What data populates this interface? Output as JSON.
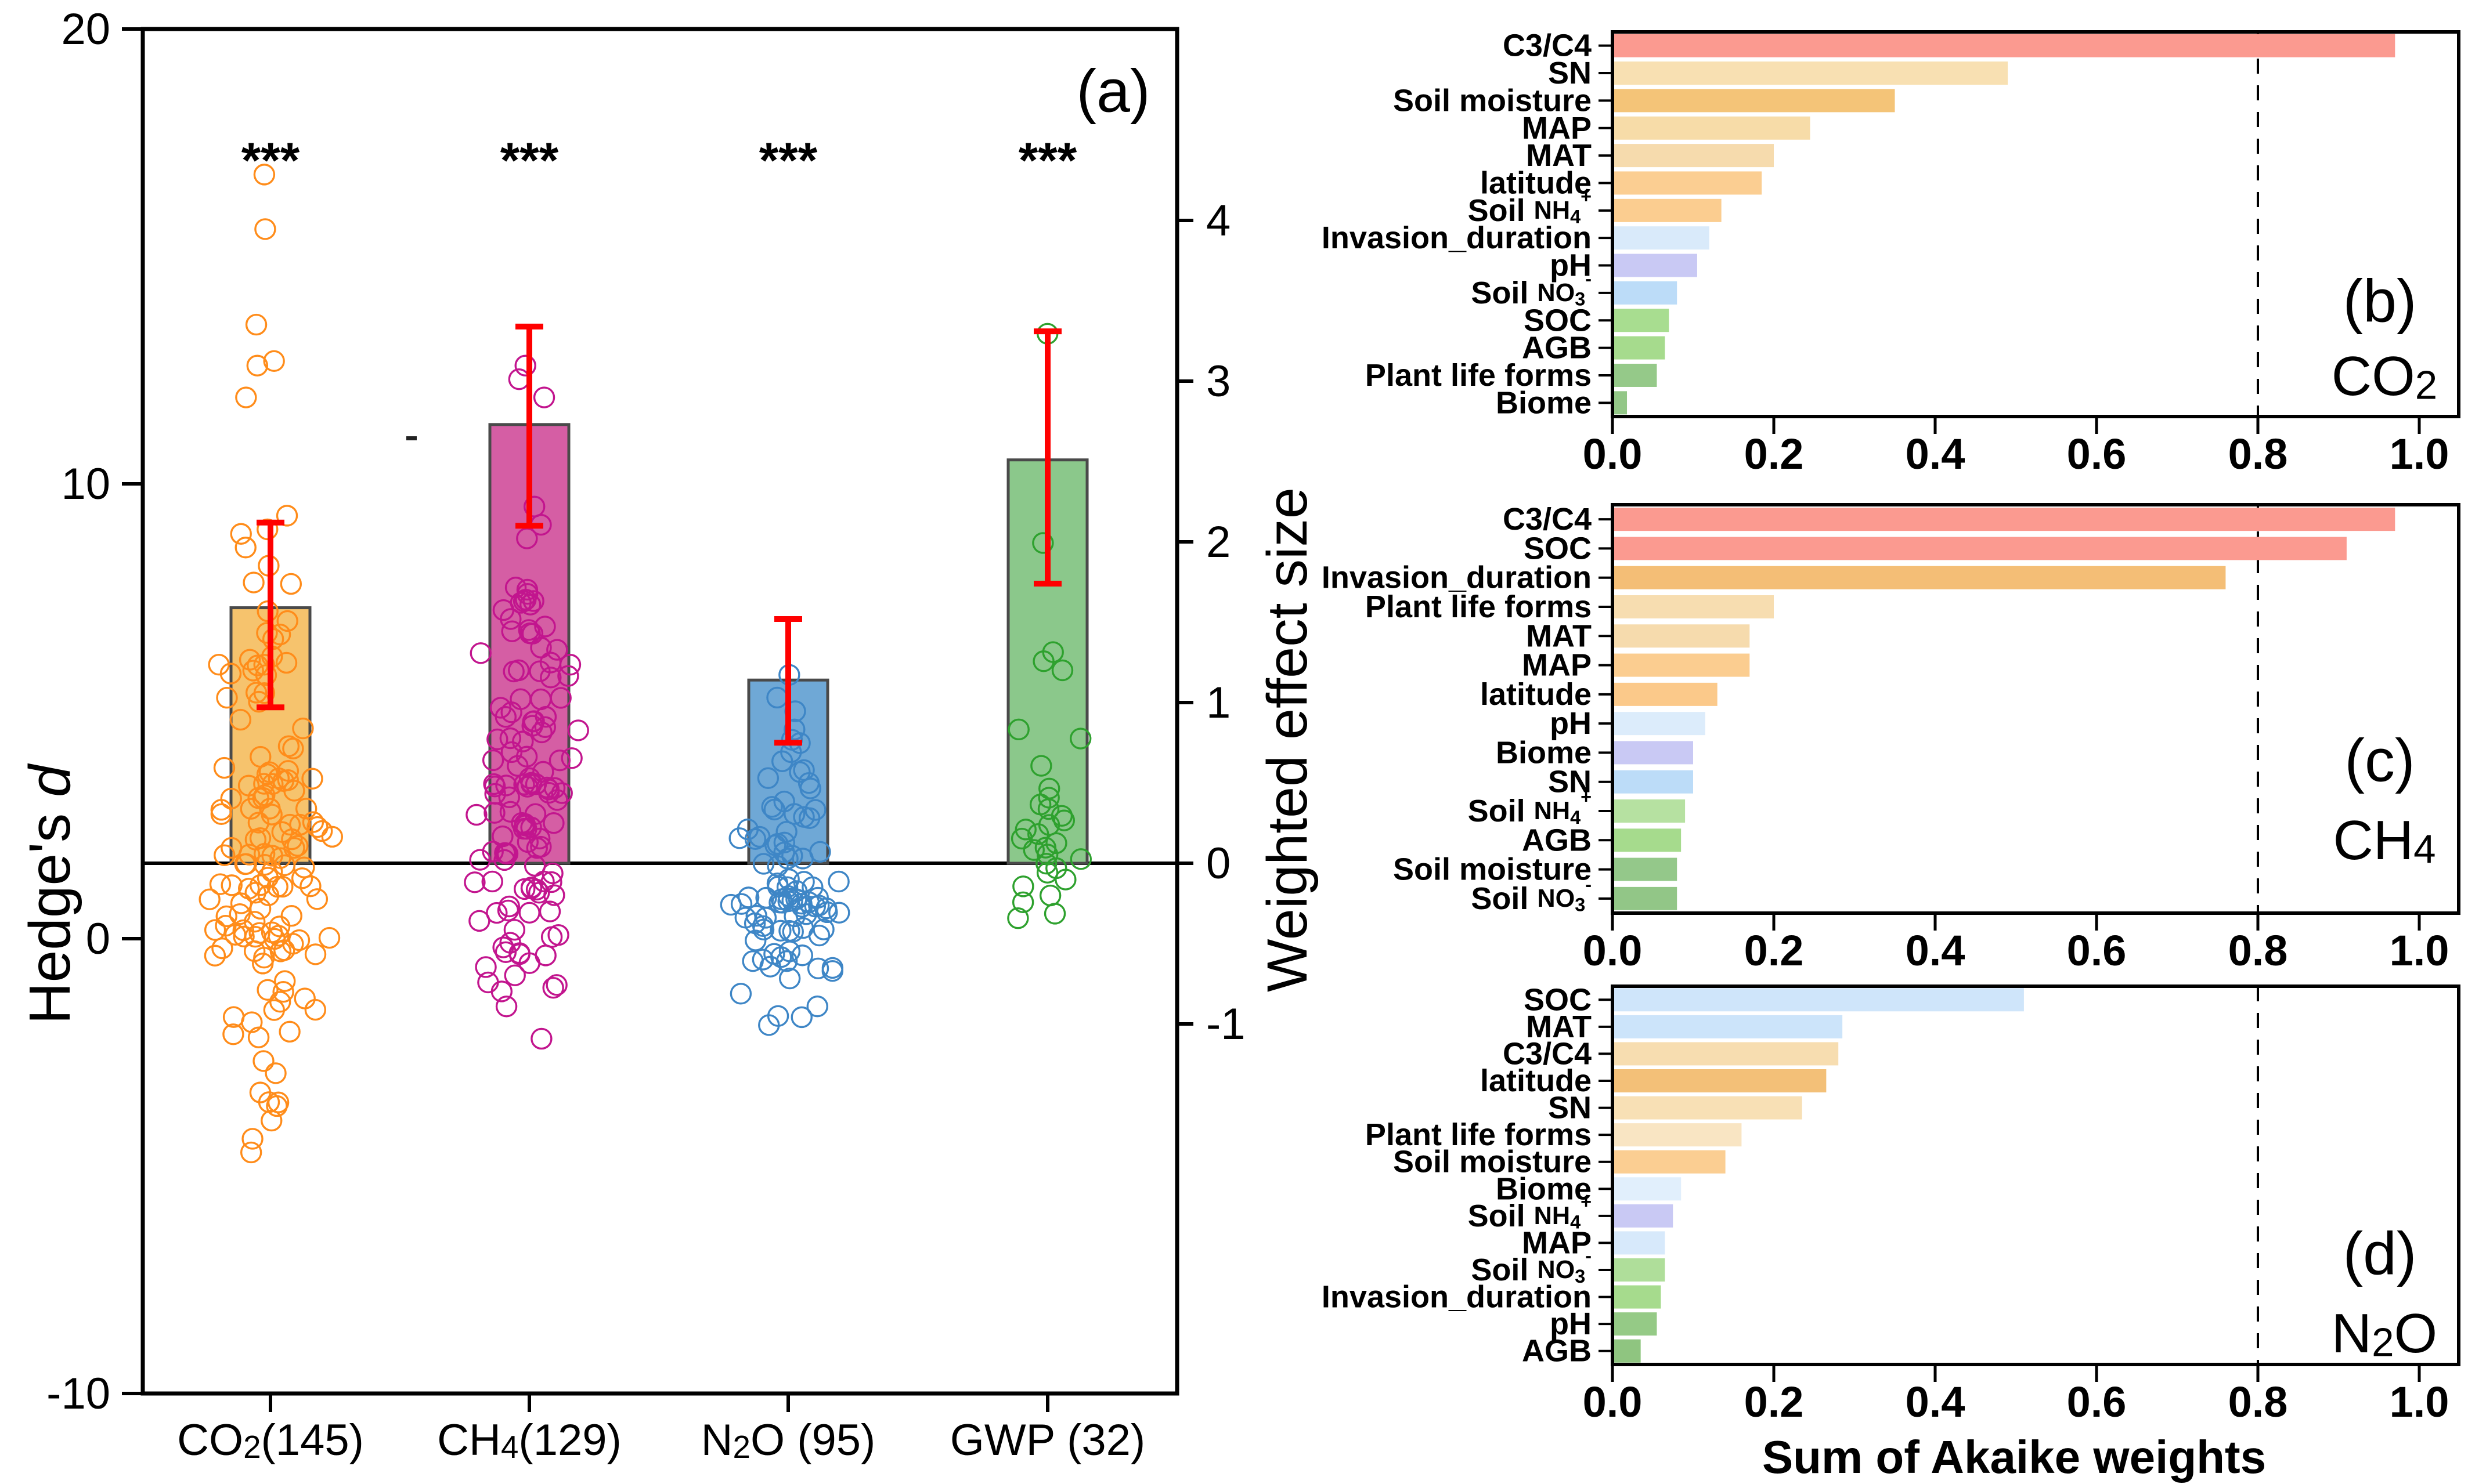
{
  "figure_title": "",
  "chart_data": [
    {
      "id": "a",
      "type": "bar",
      "subtype": "bar_with_jittered_scatter_dual_axis",
      "panel_label": "(a)",
      "ylabel_left": "Hedge's d",
      "ylabel_right": "Weighted effect size",
      "yaxis_left": {
        "ticks": [
          20,
          10,
          0,
          -10
        ],
        "range": [
          -10,
          20
        ]
      },
      "yaxis_right": {
        "ticks": [
          4,
          3,
          2,
          1,
          0,
          -1
        ],
        "range": [
          -3.3,
          5.2
        ]
      },
      "baseline_weighted_effect_size": 0,
      "error_bar_color": "#FF0000",
      "bar_border_color": "#4a4a4a",
      "groups": [
        {
          "label": "CO2(145)",
          "n": 145,
          "significance": "***",
          "weighted_effect_size": 1.59,
          "ci": [
            0.97,
            2.12
          ],
          "mean_hedges_d": 7.3,
          "bar_color": "#F6C36D",
          "marker_color": "#FF8C1A",
          "scatter": {
            "clusters": [
              {
                "center": 0.6,
                "spread": 0.75,
                "n": 30,
                "jitter": 120
              },
              {
                "center": 1.9,
                "spread": 0.8,
                "n": 30,
                "jitter": 118
              },
              {
                "center": 3.2,
                "spread": 1.0,
                "n": 22,
                "jitter": 108
              },
              {
                "center": 4.8,
                "spread": 1.0,
                "n": 16,
                "jitter": 96
              },
              {
                "center": 6.3,
                "spread": 0.7,
                "n": 8,
                "jitter": 82
              },
              {
                "center": -1.0,
                "spread": 0.7,
                "n": 14,
                "jitter": 112
              },
              {
                "center": -2.6,
                "spread": 0.8,
                "n": 9,
                "jitter": 96
              }
            ],
            "extras": [
              16.8,
              15.6,
              13.5,
              12.7,
              12.6,
              11.9,
              9.3,
              9.0,
              8.9,
              8.6,
              8.2,
              7.8,
              -3.6,
              -4.0,
              -4.4,
              -4.7
            ]
          }
        },
        {
          "label": "CH4(129)",
          "n": 129,
          "significance": "***",
          "weighted_effect_size": 2.73,
          "ci": [
            2.1,
            3.34
          ],
          "mean_hedges_d": 11.3,
          "bar_color": "#D55EA4",
          "marker_color": "#C2158E",
          "scatter": {
            "clusters": [
              {
                "center": 1.2,
                "spread": 0.7,
                "n": 30,
                "jitter": 112
              },
              {
                "center": 2.6,
                "spread": 0.9,
                "n": 30,
                "jitter": 106
              },
              {
                "center": 4.2,
                "spread": 1.0,
                "n": 24,
                "jitter": 98
              },
              {
                "center": 5.8,
                "spread": 0.9,
                "n": 16,
                "jitter": 88
              },
              {
                "center": 7.3,
                "spread": 0.6,
                "n": 10,
                "jitter": 76
              },
              {
                "center": -0.9,
                "spread": 0.55,
                "n": 12,
                "jitter": 98
              }
            ],
            "extras": [
              12.6,
              12.3,
              11.9,
              9.5,
              9.1,
              8.8,
              -2.2
            ]
          }
        },
        {
          "label": "N2O (95)",
          "n": 95,
          "significance": "***",
          "weighted_effect_size": 1.14,
          "ci": [
            0.75,
            1.52
          ],
          "mean_hedges_d": 5.7,
          "bar_color": "#6FA8D6",
          "marker_color": "#3E86C6",
          "scatter": {
            "clusters": [
              {
                "center": 0.5,
                "spread": 0.55,
                "n": 34,
                "jitter": 106
              },
              {
                "center": 1.6,
                "spread": 0.7,
                "n": 24,
                "jitter": 96
              },
              {
                "center": 2.8,
                "spread": 0.8,
                "n": 16,
                "jitter": 86
              },
              {
                "center": -0.9,
                "spread": 0.5,
                "n": 12,
                "jitter": 92
              }
            ],
            "extras": [
              5.8,
              5.3,
              5.0,
              4.6,
              4.3,
              4.1,
              3.9,
              -1.9,
              -1.7
            ]
          }
        },
        {
          "label": "GWP (32)",
          "n": 32,
          "significance": "***",
          "weighted_effect_size": 2.51,
          "ci": [
            1.74,
            3.31
          ],
          "mean_hedges_d": 10.5,
          "bar_color": "#8BC88B",
          "marker_color": "#2EA12E",
          "scatter": {
            "points": [
              13.3,
              8.7,
              6.3,
              6.1,
              5.9,
              4.6,
              4.4,
              3.8,
              3.3,
              3.1,
              2.95,
              2.85,
              2.7,
              2.6,
              2.5,
              2.4,
              2.3,
              2.2,
              2.1,
              2.0,
              1.95,
              1.85,
              1.75,
              1.65,
              1.55,
              1.45,
              1.3,
              1.15,
              0.95,
              0.8,
              0.55,
              0.45
            ],
            "jitter": 70
          }
        }
      ],
      "artifacts": [
        {
          "type": "stray-dash",
          "x": 700,
          "y": 752
        }
      ]
    },
    {
      "id": "b",
      "type": "bar",
      "orientation": "horizontal",
      "panel_label": "(b)",
      "gas": "CO2",
      "xlabel": "",
      "xticks": [
        "0.0",
        "0.2",
        "0.4",
        "0.6",
        "0.8",
        "1.0"
      ],
      "xlim": [
        0,
        1.05
      ],
      "dashed_reference_x": 0.8,
      "categories": [
        "C3/C4",
        "SN",
        "Soil moisture",
        "MAP",
        "MAT",
        "latitude",
        "Soil NH4+",
        "Invasion_duration",
        "pH",
        "Soil NO3-",
        "SOC",
        "AGB",
        "Plant life forms",
        "Biome"
      ],
      "values": [
        0.97,
        0.49,
        0.35,
        0.245,
        0.2,
        0.185,
        0.135,
        0.12,
        0.105,
        0.08,
        0.07,
        0.065,
        0.055,
        0.018
      ],
      "bar_colors": [
        "#FB9A90",
        "#F8E0B2",
        "#F4C478",
        "#F7DCA8",
        "#F6DBAD",
        "#FBCE92",
        "#FBCD90",
        "#D9EAFA",
        "#C9C9F4",
        "#BCDCF8",
        "#A8DD90",
        "#A6DB8D",
        "#95C989",
        "#93C787"
      ]
    },
    {
      "id": "c",
      "type": "bar",
      "orientation": "horizontal",
      "panel_label": "(c)",
      "gas": "CH4",
      "xlabel": "",
      "xticks": [
        "0.0",
        "0.2",
        "0.4",
        "0.6",
        "0.8",
        "1.0"
      ],
      "xlim": [
        0,
        1.05
      ],
      "dashed_reference_x": 0.8,
      "categories": [
        "C3/C4",
        "SOC",
        "Invasion_duration",
        "Plant life forms",
        "MAT",
        "MAP",
        "latitude",
        "pH",
        "Biome",
        "SN",
        "Soil NH4+",
        "AGB",
        "Soil moisture",
        "Soil NO3-"
      ],
      "values": [
        0.97,
        0.91,
        0.76,
        0.2,
        0.17,
        0.17,
        0.13,
        0.115,
        0.1,
        0.1,
        0.09,
        0.085,
        0.08,
        0.08
      ],
      "bar_colors": [
        "#FB9A90",
        "#FB9A90",
        "#F4BE76",
        "#F7DDB0",
        "#F6DBAD",
        "#FBCD90",
        "#FBC98A",
        "#DCECFB",
        "#C9C9F4",
        "#BCDCF8",
        "#B6E1A1",
        "#A6DB8D",
        "#94C88A",
        "#92C687"
      ]
    },
    {
      "id": "d",
      "type": "bar",
      "orientation": "horizontal",
      "panel_label": "(d)",
      "gas": "N2O",
      "xlabel": "Sum of Akaike weights",
      "xticks": [
        "0.0",
        "0.2",
        "0.4",
        "0.6",
        "0.8",
        "1.0"
      ],
      "xlim": [
        0,
        1.05
      ],
      "dashed_reference_x": 0.8,
      "categories": [
        "SOC",
        "MAT",
        "C3/C4",
        "latitude",
        "SN",
        "Plant life forms",
        "Soil moisture",
        "Biome",
        "Soil NH4+",
        "MAP",
        "Soil NO3-",
        "Invasion_duration",
        "pH",
        "AGB"
      ],
      "values": [
        0.51,
        0.285,
        0.28,
        0.265,
        0.235,
        0.16,
        0.14,
        0.085,
        0.075,
        0.065,
        0.065,
        0.06,
        0.055,
        0.035
      ],
      "bar_colors": [
        "#CFE5FA",
        "#CCE4FA",
        "#F7DDB0",
        "#F3C078",
        "#F8E0B5",
        "#F9E5C3",
        "#FBCE92",
        "#E1EFFC",
        "#C9C9F4",
        "#D7E9FB",
        "#AFDE9A",
        "#A6DB8D",
        "#95CA86",
        "#8FC580"
      ]
    }
  ],
  "rich_labels": {
    "CO2(145)": [
      {
        "t": "CO"
      },
      {
        "t": "2",
        "s": 0.72,
        "o": 0.16
      },
      {
        "t": "(145)"
      }
    ],
    "CH4(129)": [
      {
        "t": "CH"
      },
      {
        "t": "4",
        "s": 0.72,
        "o": 0.16
      },
      {
        "t": "(129)"
      }
    ],
    "N2O (95)": [
      {
        "t": "N"
      },
      {
        "t": "2",
        "s": 0.72,
        "o": 0.16
      },
      {
        "t": "O (95)"
      }
    ],
    "GWP (32)": [
      {
        "t": "GWP (32)"
      }
    ],
    "Soil NH4+": [
      {
        "t": "Soil "
      },
      {
        "t": "NH",
        "s": 0.8
      },
      {
        "t": "4",
        "s": 0.6,
        "o": 0.2
      },
      {
        "t": "+",
        "s": 0.6,
        "o": -0.45
      }
    ],
    "Soil NO3-": [
      {
        "t": "Soil "
      },
      {
        "t": "NO",
        "s": 0.8
      },
      {
        "t": "3",
        "s": 0.6,
        "o": 0.2
      },
      {
        "t": "-",
        "s": 0.6,
        "o": -0.45
      }
    ],
    "CO2": [
      {
        "t": "CO"
      },
      {
        "t": "2",
        "s": 0.72,
        "o": 0.16
      }
    ],
    "CH4": [
      {
        "t": "CH"
      },
      {
        "t": "4",
        "s": 0.72,
        "o": 0.16
      }
    ],
    "N2O": [
      {
        "t": "N"
      },
      {
        "t": "2",
        "s": 0.72,
        "o": 0.16
      },
      {
        "t": "O"
      }
    ],
    "Hedge's d": [
      {
        "t": "Hedge's "
      },
      {
        "t": "d",
        "i": 1
      }
    ]
  },
  "style_colors": {
    "axis": "#000000",
    "error_bar": "#FF0000",
    "bar_border": "#4a4a4a",
    "dashed_reference": "#000000"
  }
}
